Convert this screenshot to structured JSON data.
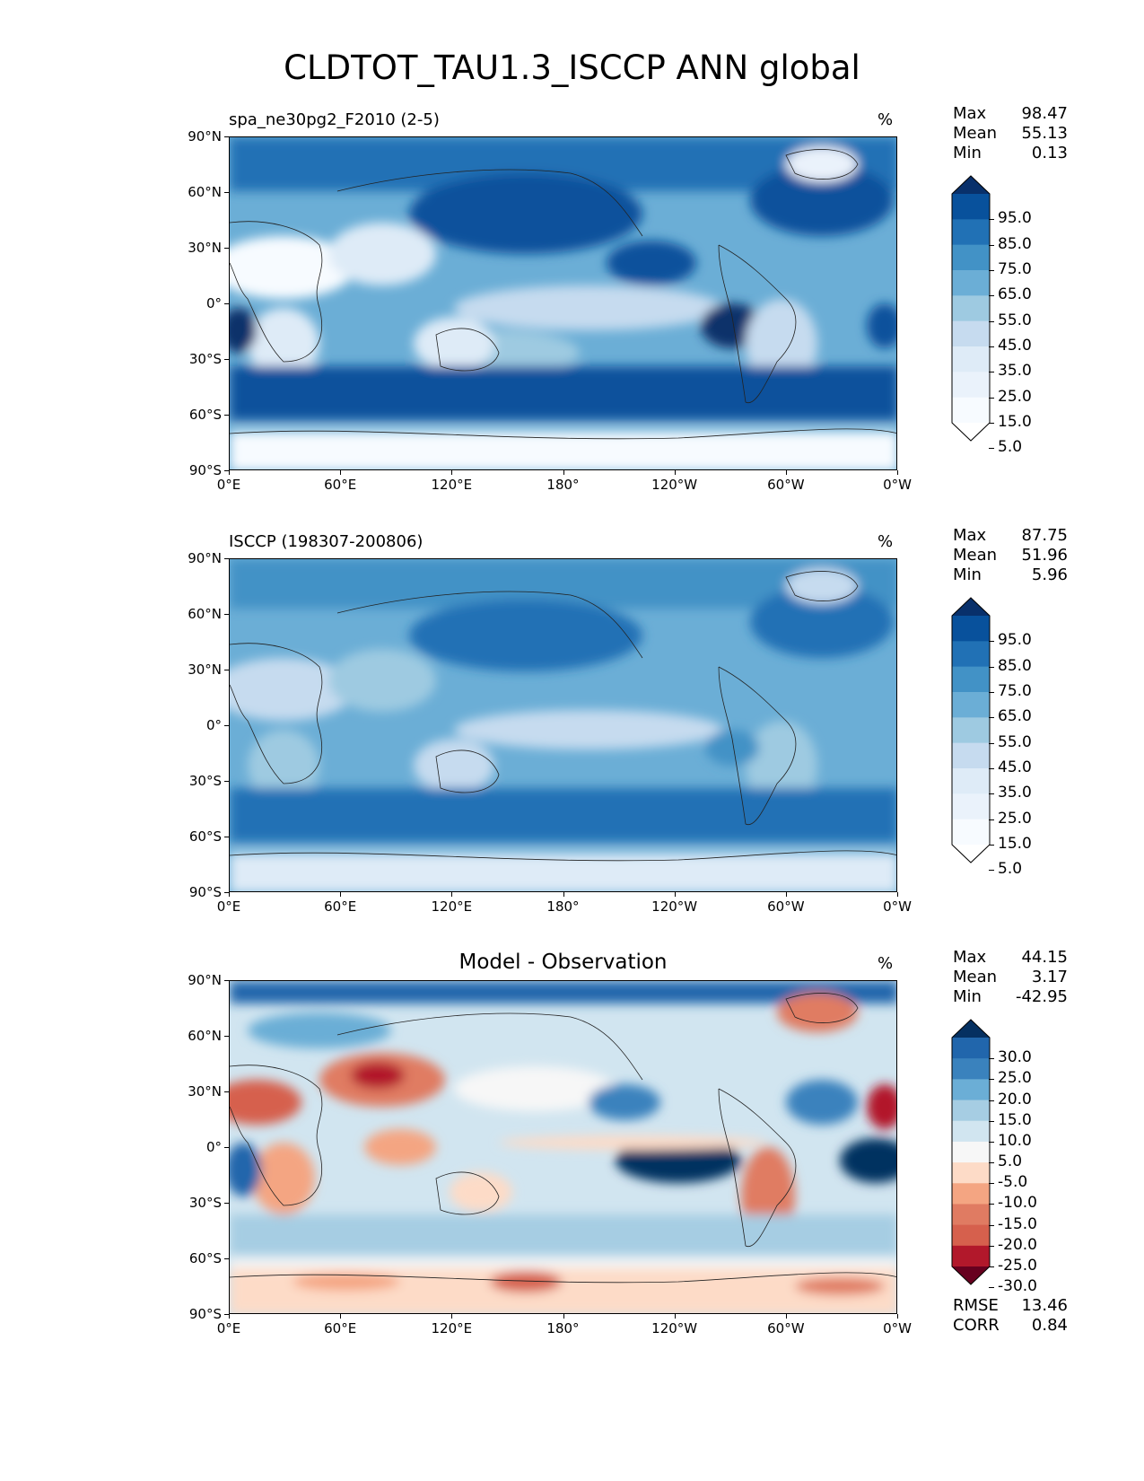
{
  "title": "CLDTOT_TAU1.3_ISCCP ANN global",
  "axes": {
    "lat_ticks": [
      "90°N",
      "60°N",
      "30°N",
      "0°",
      "30°S",
      "60°S",
      "90°S"
    ],
    "lon_ticks": [
      "0°E",
      "60°E",
      "120°E",
      "180°",
      "120°W",
      "60°W",
      "0°W"
    ]
  },
  "panels": [
    {
      "title": "spa_ne30pg2_F2010 (2-5)",
      "units": "%",
      "stats": [
        {
          "label": "Max",
          "value": "98.47"
        },
        {
          "label": "Mean",
          "value": "55.13"
        },
        {
          "label": "Min",
          "value": "0.13"
        }
      ],
      "colorbar": {
        "labels": [
          "95.0",
          "85.0",
          "75.0",
          "65.0",
          "55.0",
          "45.0",
          "35.0",
          "25.0",
          "15.0",
          "5.0"
        ],
        "colors": [
          "#08306b",
          "#08519c",
          "#2171b5",
          "#4292c6",
          "#6baed6",
          "#9ecae1",
          "#c6dbef",
          "#deebf7",
          "#eaf2fb",
          "#f7fbff",
          "#ffffff"
        ]
      }
    },
    {
      "title": "ISCCP (198307-200806)",
      "units": "%",
      "stats": [
        {
          "label": "Max",
          "value": "87.75"
        },
        {
          "label": "Mean",
          "value": "51.96"
        },
        {
          "label": "Min",
          "value": "5.96"
        }
      ],
      "colorbar": {
        "labels": [
          "95.0",
          "85.0",
          "75.0",
          "65.0",
          "55.0",
          "45.0",
          "35.0",
          "25.0",
          "15.0",
          "5.0"
        ],
        "colors": [
          "#08306b",
          "#08519c",
          "#2171b5",
          "#4292c6",
          "#6baed6",
          "#9ecae1",
          "#c6dbef",
          "#deebf7",
          "#eaf2fb",
          "#f7fbff",
          "#ffffff"
        ]
      }
    },
    {
      "title": "Model - Observation",
      "units": "%",
      "stats": [
        {
          "label": "Max",
          "value": "44.15"
        },
        {
          "label": "Mean",
          "value": "3.17"
        },
        {
          "label": "Min",
          "value": "-42.95"
        }
      ],
      "colorbar": {
        "labels": [
          "30.0",
          "25.0",
          "20.0",
          "15.0",
          "10.0",
          "5.0",
          "-5.0",
          "-10.0",
          "-15.0",
          "-20.0",
          "-25.0",
          "-30.0"
        ],
        "colors": [
          "#053061",
          "#2166ac",
          "#3a82bd",
          "#6baed6",
          "#a6cde3",
          "#d1e5f0",
          "#f7f7f7",
          "#fddbc7",
          "#f4a582",
          "#e07b62",
          "#d6604d",
          "#b2182b",
          "#67001f"
        ]
      },
      "extra_stats": [
        {
          "label": "RMSE",
          "value": "13.46"
        },
        {
          "label": "CORR",
          "value": "0.84"
        }
      ]
    }
  ]
}
